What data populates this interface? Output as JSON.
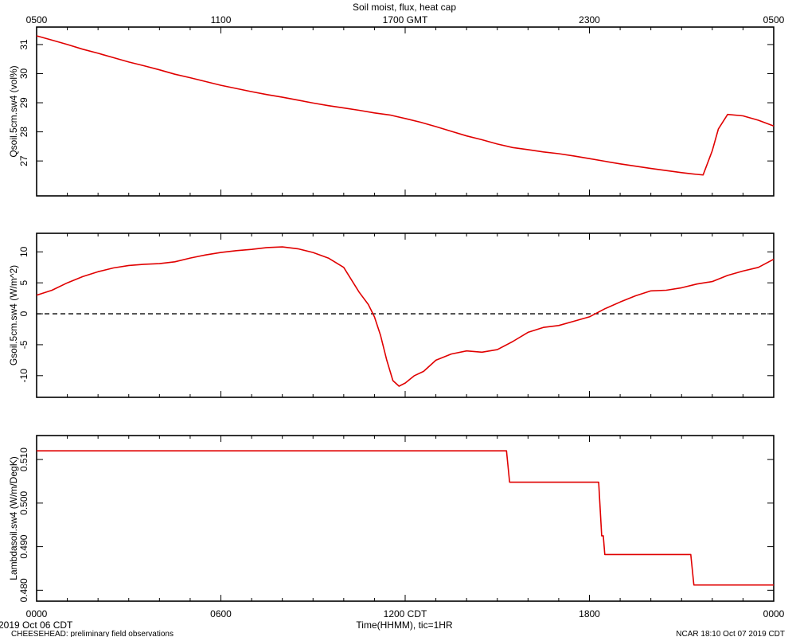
{
  "title": "Soil moist, flux, heat cap",
  "top_axis": {
    "ticks": [
      {
        "hour": 0,
        "label": "0500"
      },
      {
        "hour": 6,
        "label": "1100"
      },
      {
        "hour": 12,
        "label": "1700 GMT"
      },
      {
        "hour": 18,
        "label": "2300"
      },
      {
        "hour": 24,
        "label": "0500"
      }
    ]
  },
  "bottom_axis": {
    "ticks": [
      {
        "hour": 0,
        "label": "0000"
      },
      {
        "hour": 6,
        "label": "0600"
      },
      {
        "hour": 12,
        "label": "1200 CDT"
      },
      {
        "hour": 18,
        "label": "1800"
      },
      {
        "hour": 24,
        "label": "0000"
      }
    ],
    "xlabel": "Time(HHMM), tic=1HR"
  },
  "footer": {
    "date_left": "2019 Oct 06 CDT",
    "project": "CHEESEHEAD: preliminary field observations",
    "credit": "NCAR 18:10 Oct 07 2019 CDT"
  },
  "chart_data": [
    {
      "type": "line",
      "ylabel": "Qsoil.5cm.sw4 (vol%)",
      "xlim": [
        0,
        24
      ],
      "ylim": [
        25.8,
        31.6
      ],
      "y_ticks": [
        27,
        28,
        29,
        30,
        31
      ],
      "dashed_zero": false,
      "series": [
        {
          "color": "#e00000",
          "x": [
            0,
            0.5,
            1,
            1.5,
            2,
            2.5,
            3,
            3.5,
            4,
            4.5,
            5,
            5.5,
            6,
            6.5,
            7,
            7.5,
            8,
            8.5,
            9,
            9.5,
            10,
            10.5,
            11,
            11.5,
            12,
            12.5,
            13,
            13.5,
            14,
            14.5,
            15,
            15.5,
            16,
            16.5,
            17,
            17.5,
            18,
            18.5,
            19,
            19.5,
            20,
            20.5,
            21,
            21.3,
            21.5,
            21.7,
            22,
            22.2,
            22.5,
            23,
            23.5,
            24
          ],
          "y": [
            31.3,
            31.15,
            31.0,
            30.84,
            30.7,
            30.55,
            30.4,
            30.27,
            30.13,
            29.98,
            29.86,
            29.73,
            29.6,
            29.49,
            29.38,
            29.28,
            29.19,
            29.09,
            28.99,
            28.9,
            28.82,
            28.74,
            28.65,
            28.58,
            28.46,
            28.33,
            28.18,
            28.02,
            27.86,
            27.73,
            27.58,
            27.46,
            27.39,
            27.31,
            27.25,
            27.17,
            27.08,
            26.99,
            26.9,
            26.82,
            26.74,
            26.67,
            26.6,
            26.56,
            26.54,
            26.52,
            27.35,
            28.1,
            28.6,
            28.55,
            28.4,
            28.2
          ]
        }
      ]
    },
    {
      "type": "line",
      "ylabel": "Gsoil.5cm.sw4 (W/m^2)",
      "xlim": [
        0,
        24
      ],
      "ylim": [
        -13.5,
        13
      ],
      "y_ticks": [
        -10,
        -5,
        0,
        5,
        10
      ],
      "dashed_zero": true,
      "series": [
        {
          "color": "#e00000",
          "x": [
            0,
            0.5,
            1,
            1.5,
            2,
            2.5,
            3,
            3.5,
            4,
            4.5,
            5,
            5.5,
            6,
            6.5,
            7,
            7.5,
            8,
            8.5,
            9,
            9.5,
            10,
            10.5,
            10.8,
            11,
            11.2,
            11.4,
            11.6,
            11.8,
            12,
            12.3,
            12.6,
            13,
            13.5,
            14,
            14.5,
            15,
            15.5,
            16,
            16.5,
            17,
            17.5,
            18,
            18.5,
            19,
            19.5,
            20,
            20.5,
            21,
            21.5,
            22,
            22.5,
            23,
            23.5,
            24
          ],
          "y": [
            3.0,
            3.8,
            5.0,
            6.0,
            6.8,
            7.4,
            7.8,
            8.0,
            8.1,
            8.4,
            9.0,
            9.5,
            9.9,
            10.2,
            10.4,
            10.7,
            10.8,
            10.5,
            9.9,
            9.0,
            7.5,
            3.5,
            1.5,
            -0.5,
            -3.5,
            -7.5,
            -10.8,
            -11.7,
            -11.2,
            -10.0,
            -9.3,
            -7.5,
            -6.5,
            -6.0,
            -6.2,
            -5.8,
            -4.5,
            -3.0,
            -2.2,
            -1.9,
            -1.2,
            -0.5,
            0.8,
            1.9,
            2.9,
            3.7,
            3.8,
            4.2,
            4.8,
            5.2,
            6.2,
            6.9,
            7.5,
            8.8
          ]
        }
      ]
    },
    {
      "type": "line",
      "ylabel": "Lambdasoil.sw4 (W/m/DegK)",
      "xlim": [
        0,
        24
      ],
      "ylim": [
        0.4775,
        0.5155
      ],
      "y_ticks": [
        0.48,
        0.49,
        0.5,
        0.51
      ],
      "tick_format": "0.000",
      "dashed_zero": false,
      "series": [
        {
          "color": "#e00000",
          "x": [
            0,
            15.3,
            15.4,
            15.5,
            18.3,
            18.4,
            18.45,
            18.5,
            21.3,
            21.4,
            24
          ],
          "y": [
            0.512,
            0.512,
            0.5048,
            0.5048,
            0.5048,
            0.4925,
            0.4925,
            0.4882,
            0.4882,
            0.4812,
            0.4812
          ]
        }
      ]
    }
  ]
}
